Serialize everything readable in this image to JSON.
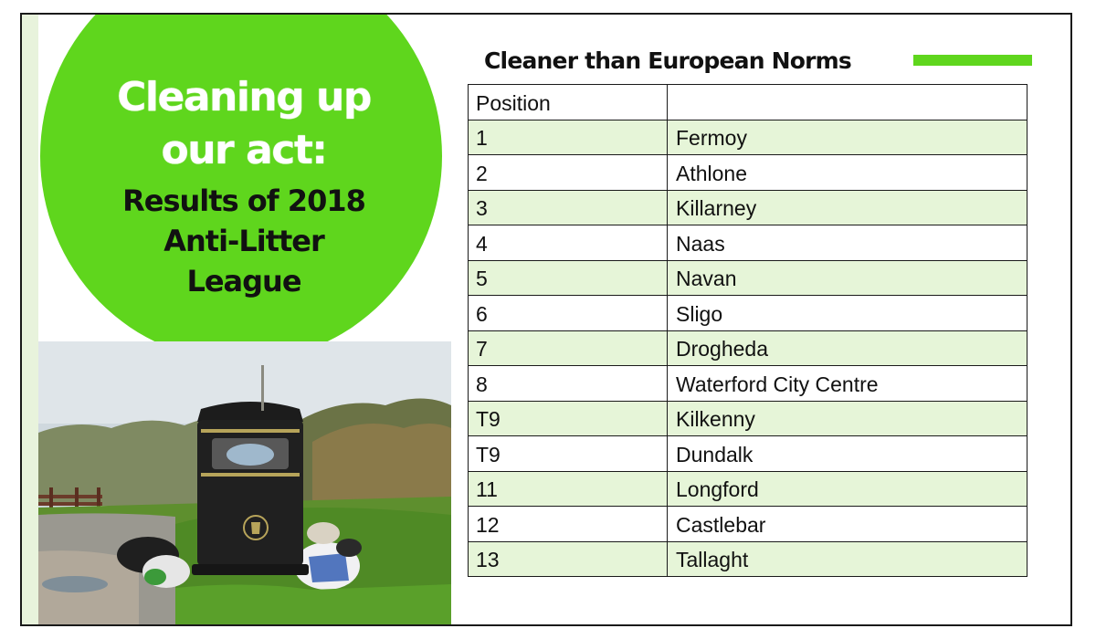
{
  "headline": {
    "line1": "Cleaning up",
    "line2": "our act:",
    "line3": "Results of 2018",
    "line4": "Anti-Litter",
    "line5": "League"
  },
  "table": {
    "title": "Cleaner than European Norms",
    "header": {
      "position": "Position",
      "town": ""
    },
    "rows": [
      {
        "position": "1",
        "town": "Fermoy"
      },
      {
        "position": "2",
        "town": "Athlone"
      },
      {
        "position": "3",
        "town": "Killarney"
      },
      {
        "position": "4",
        "town": "Naas"
      },
      {
        "position": "5",
        "town": "Navan"
      },
      {
        "position": "6",
        "town": "Sligo"
      },
      {
        "position": "7",
        "town": "Drogheda"
      },
      {
        "position": "8",
        "town": "Waterford City Centre"
      },
      {
        "position": "T9",
        "town": "Kilkenny"
      },
      {
        "position": "T9",
        "town": "Dundalk"
      },
      {
        "position": "11",
        "town": "Longford"
      },
      {
        "position": "12",
        "town": "Castlebar"
      },
      {
        "position": "13",
        "town": "Tallaght"
      }
    ]
  },
  "colors": {
    "accent_green": "#5fd61d",
    "row_tint": "#e6f5d8",
    "text": "#111111"
  },
  "photo": {
    "subject": "litter-bin-photo",
    "bin_logo_icon": "tidy-man-icon"
  }
}
